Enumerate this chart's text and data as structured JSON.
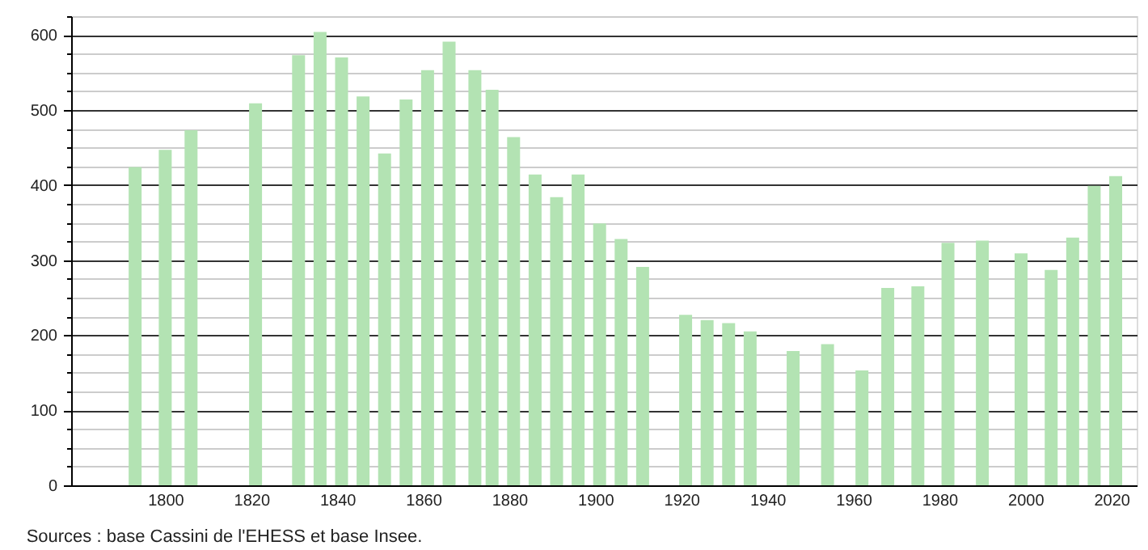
{
  "chart_data": {
    "type": "bar",
    "x": [
      1793,
      1800,
      1806,
      1821,
      1831,
      1836,
      1841,
      1846,
      1851,
      1856,
      1861,
      1866,
      1872,
      1876,
      1881,
      1886,
      1891,
      1896,
      1901,
      1906,
      1911,
      1921,
      1926,
      1931,
      1936,
      1946,
      1954,
      1962,
      1968,
      1975,
      1982,
      1990,
      1999,
      2006,
      2011,
      2016,
      2021
    ],
    "values": [
      424,
      447,
      473,
      509,
      573,
      604,
      570,
      518,
      442,
      514,
      553,
      591,
      553,
      527,
      464,
      414,
      384,
      414,
      349,
      328,
      291,
      227,
      220,
      216,
      205,
      179,
      188,
      153,
      263,
      265,
      323,
      326,
      309,
      287,
      330,
      399,
      412
    ],
    "color": "#b3e3b3",
    "xlim": [
      1780,
      2024
    ],
    "xticks": [
      1800,
      1820,
      1840,
      1860,
      1880,
      1900,
      1920,
      1940,
      1960,
      1980,
      2000,
      2020
    ],
    "ylim": [
      0,
      625
    ],
    "yticks": [
      0,
      {
        "value": 25,
        "label": null
      },
      {
        "value": 50,
        "label": null
      },
      {
        "value": 75,
        "label": null
      },
      100,
      {
        "value": 125,
        "label": null
      },
      {
        "value": 150,
        "label": null
      },
      {
        "value": 175,
        "label": null
      },
      200,
      {
        "value": 225,
        "label": null
      },
      {
        "value": 250,
        "label": null
      },
      {
        "value": 275,
        "label": null
      },
      300,
      {
        "value": 325,
        "label": null
      },
      {
        "value": 350,
        "label": null
      },
      {
        "value": 375,
        "label": null
      },
      400,
      {
        "value": 425,
        "label": null
      },
      {
        "value": 450,
        "label": null
      },
      {
        "value": 475,
        "label": null
      },
      500,
      {
        "value": 525,
        "label": null
      },
      {
        "value": 550,
        "label": null
      },
      {
        "value": 575,
        "label": null
      },
      600,
      {
        "value": 625,
        "label": null
      }
    ],
    "grid": "y",
    "annotations": [
      "Sources : base Cassini de l'EHESS et base Insee."
    ]
  }
}
